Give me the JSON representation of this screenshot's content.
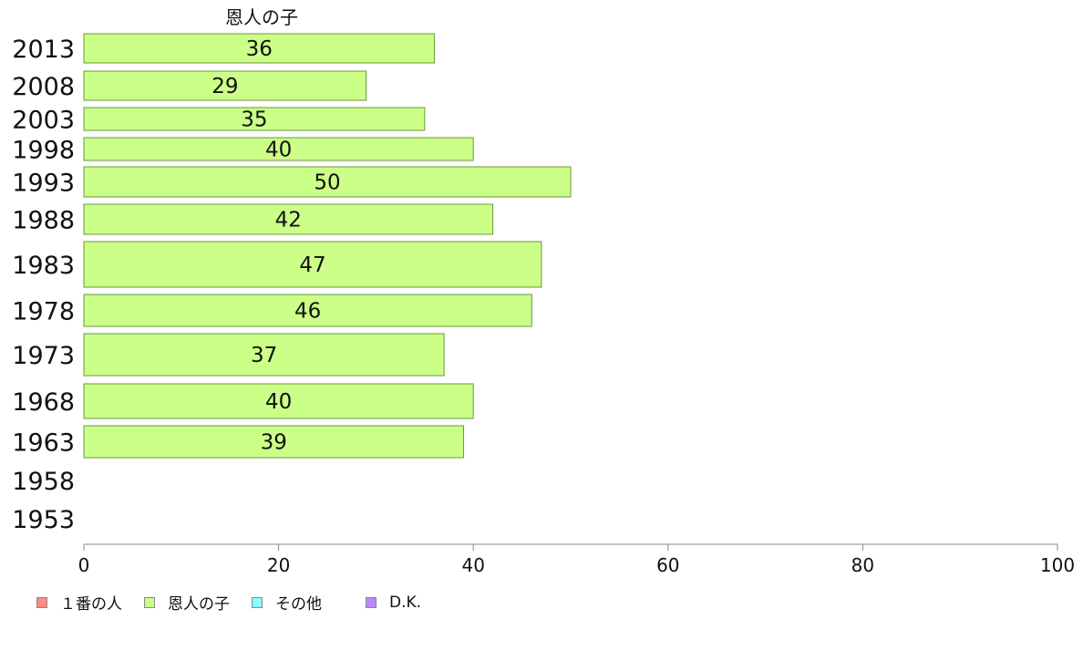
{
  "chart_data": {
    "type": "bar",
    "orientation": "horizontal",
    "title": "",
    "series_title": "恩人の子",
    "categories": [
      "2013",
      "2008",
      "2003",
      "1998",
      "1993",
      "1988",
      "1983",
      "1978",
      "1973",
      "1968",
      "1963",
      "1958",
      "1953"
    ],
    "series": [
      {
        "name": "恩人の子",
        "color": "#ccff88",
        "values": [
          36,
          29,
          35,
          40,
          50,
          42,
          47,
          46,
          37,
          40,
          39,
          null,
          null
        ]
      }
    ],
    "xlim": [
      0,
      100
    ],
    "xticks": [
      0,
      20,
      40,
      60,
      80,
      100
    ],
    "legend": [
      {
        "label": "１番の人",
        "color": "#ff8888"
      },
      {
        "label": "恩人の子",
        "color": "#ccff88"
      },
      {
        "label": "その他",
        "color": "#88ffff"
      },
      {
        "label": "D.K.",
        "color": "#bb88ff"
      }
    ],
    "legend_position": "bottom-left",
    "grid": false
  }
}
